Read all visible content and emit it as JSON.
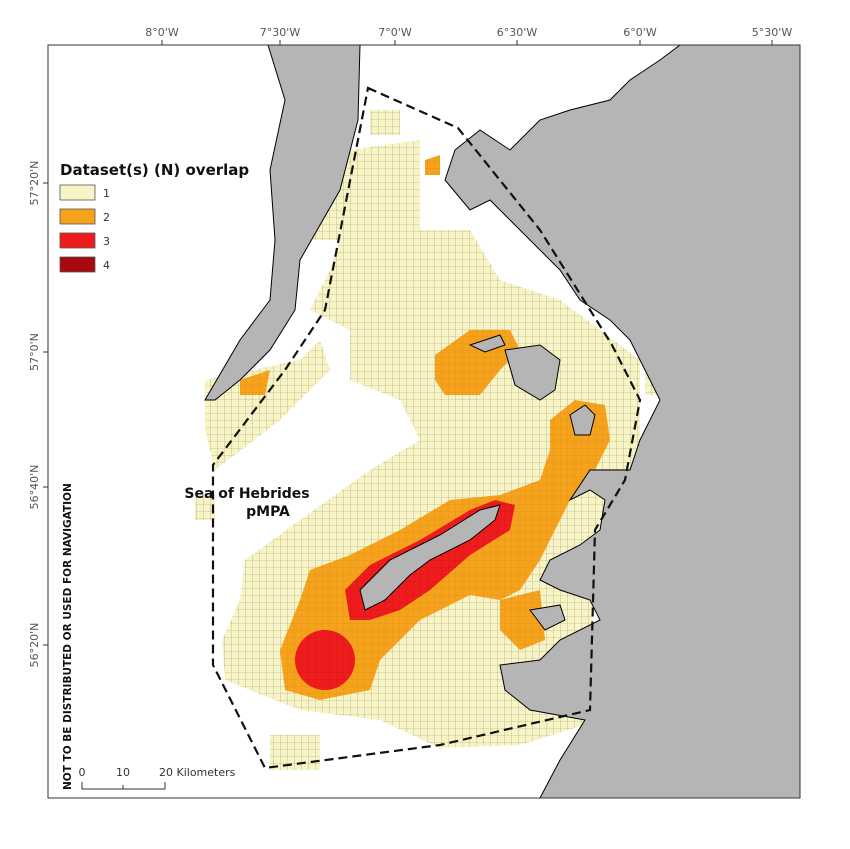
{
  "map": {
    "longitude_labels": [
      "8°0'W",
      "7°30'W",
      "7°0'W",
      "6°30'W",
      "6°0'W",
      "5°30'W"
    ],
    "latitude_labels": [
      "57°20'N",
      "57°0'N",
      "56°40'N",
      "56°20'N"
    ],
    "legend": {
      "title": "Dataset(s) (N) overlap",
      "items": [
        {
          "label": "1",
          "color": "#f8f4c6"
        },
        {
          "label": "2",
          "color": "#f5a31c"
        },
        {
          "label": "3",
          "color": "#ee1c1c"
        },
        {
          "label": "4",
          "color": "#a8080e"
        }
      ]
    },
    "area_label": [
      "Sea of Hebrides",
      "pMPA"
    ],
    "scale_bar": {
      "labels": [
        "0",
        "10",
        "20 Kilometers"
      ]
    },
    "disclaimer": "NOT TO BE DISTRIBUTED OR USED FOR NAVIGATION"
  }
}
